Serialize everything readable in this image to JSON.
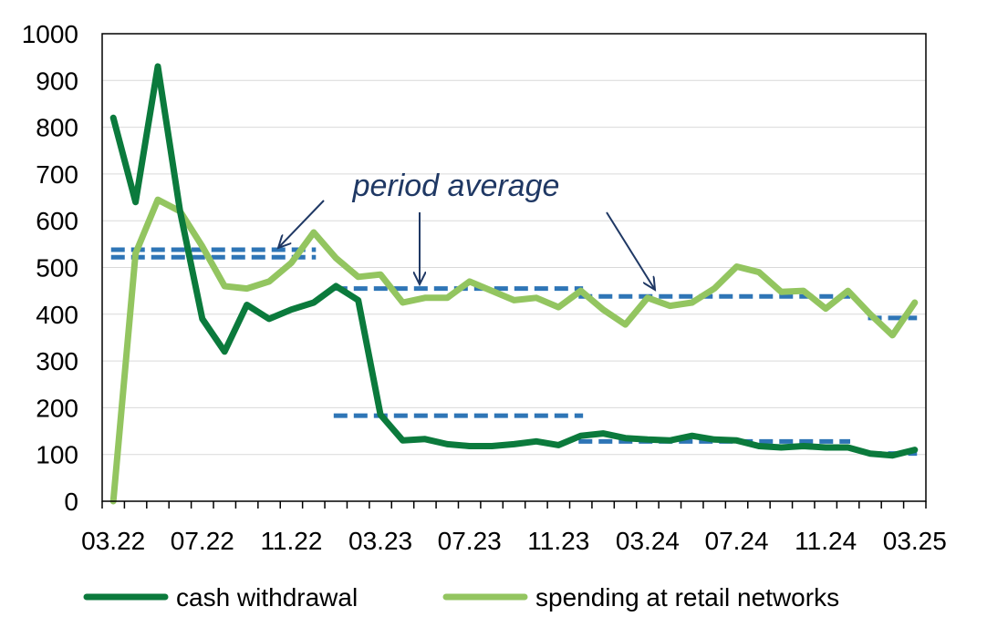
{
  "chart_data": {
    "type": "line",
    "title": "",
    "xlabel": "",
    "ylabel": "",
    "ylim": [
      0,
      1000
    ],
    "yticks": [
      0,
      100,
      200,
      300,
      400,
      500,
      600,
      700,
      800,
      900,
      1000
    ],
    "grid": true,
    "legend_position": "bottom",
    "x": [
      "03.22",
      "04.22",
      "05.22",
      "06.22",
      "07.22",
      "08.22",
      "09.22",
      "10.22",
      "11.22",
      "12.22",
      "01.23",
      "02.23",
      "03.23",
      "04.23",
      "05.23",
      "06.23",
      "07.23",
      "08.23",
      "09.23",
      "10.23",
      "11.23",
      "12.23",
      "01.24",
      "02.24",
      "03.24",
      "04.24",
      "05.24",
      "06.24",
      "07.24",
      "08.24",
      "09.24",
      "10.24",
      "11.24",
      "12.24",
      "01.25",
      "02.25",
      "03.25"
    ],
    "xticklabels": [
      "03.22",
      "07.22",
      "11.22",
      "03.23",
      "07.23",
      "11.23",
      "03.24",
      "07.24",
      "11.24",
      "03.25"
    ],
    "series": [
      {
        "name": "cash withdrawal",
        "color": "#0b7a3c",
        "values": [
          820,
          640,
          930,
          620,
          390,
          320,
          420,
          390,
          410,
          425,
          460,
          430,
          185,
          130,
          133,
          122,
          118,
          118,
          122,
          128,
          120,
          140,
          145,
          135,
          132,
          130,
          140,
          132,
          130,
          118,
          115,
          118,
          115,
          115,
          102,
          98,
          110
        ]
      },
      {
        "name": "spending at retail networks",
        "color": "#93c560",
        "values": [
          0,
          530,
          645,
          620,
          545,
          460,
          455,
          470,
          510,
          575,
          520,
          480,
          485,
          425,
          435,
          435,
          470,
          450,
          430,
          435,
          415,
          450,
          410,
          378,
          435,
          418,
          425,
          455,
          502,
          490,
          448,
          450,
          412,
          450,
          400,
          355,
          425
        ]
      }
    ],
    "averages": [
      {
        "x_start": "03.22",
        "x_end": "12.22",
        "value": 538
      },
      {
        "x_start": "03.22",
        "x_end": "12.22",
        "value": 522
      },
      {
        "x_start": "01.23",
        "x_end": "12.23",
        "value": 455
      },
      {
        "x_start": "01.23",
        "x_end": "12.23",
        "value": 183
      },
      {
        "x_start": "12.23",
        "x_end": "12.24",
        "value": 438
      },
      {
        "x_start": "12.23",
        "x_end": "12.24",
        "value": 128
      },
      {
        "x_start": "01.25",
        "x_end": "03.25",
        "value": 392
      },
      {
        "x_start": "01.25",
        "x_end": "03.25",
        "value": 102
      }
    ],
    "average_line_color": "#2e75b6",
    "annotation": {
      "text": "period average",
      "arrow_color": "#1f3864",
      "arrows": [
        {
          "from": [
            355,
            220
          ],
          "to": [
            305,
            272
          ]
        },
        {
          "from": [
            460,
            233
          ],
          "to": [
            460,
            312
          ]
        },
        {
          "from": [
            665,
            233
          ],
          "to": [
            718,
            318
          ]
        }
      ]
    }
  }
}
